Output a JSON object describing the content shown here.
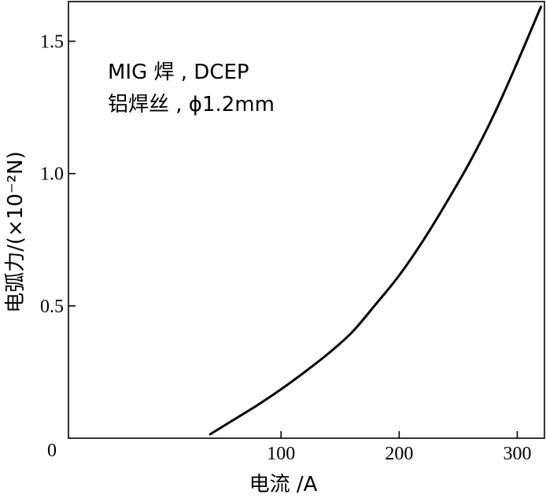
{
  "chart_data": {
    "type": "line",
    "xlabel": "电流 /A",
    "ylabel": "电弧力/(×10⁻²N)",
    "xlim": [
      -80,
      323
    ],
    "ylim": [
      0,
      1.65
    ],
    "x_ticks": [
      {
        "value": 100,
        "label": "100"
      },
      {
        "value": 200,
        "label": "200"
      },
      {
        "value": 300,
        "label": "300"
      }
    ],
    "y_ticks": [
      {
        "value": 0.5,
        "label": "0.5"
      },
      {
        "value": 1.0,
        "label": "1.0"
      },
      {
        "value": 1.5,
        "label": "1.5"
      }
    ],
    "origin_label": "0",
    "grid": false,
    "annotations": [
      "MIG 焊 , DCEP",
      "铝焊丝 , ϕ1.2mm"
    ],
    "series": [
      {
        "x": [
          40,
          60,
          80,
          100,
          120,
          140,
          160,
          180,
          200,
          220,
          240,
          260,
          280,
          300,
          320
        ],
        "y": [
          0.015,
          0.07,
          0.125,
          0.185,
          0.25,
          0.32,
          0.4,
          0.505,
          0.615,
          0.745,
          0.89,
          1.045,
          1.22,
          1.42,
          1.63
        ],
        "color": "#000000"
      }
    ]
  }
}
